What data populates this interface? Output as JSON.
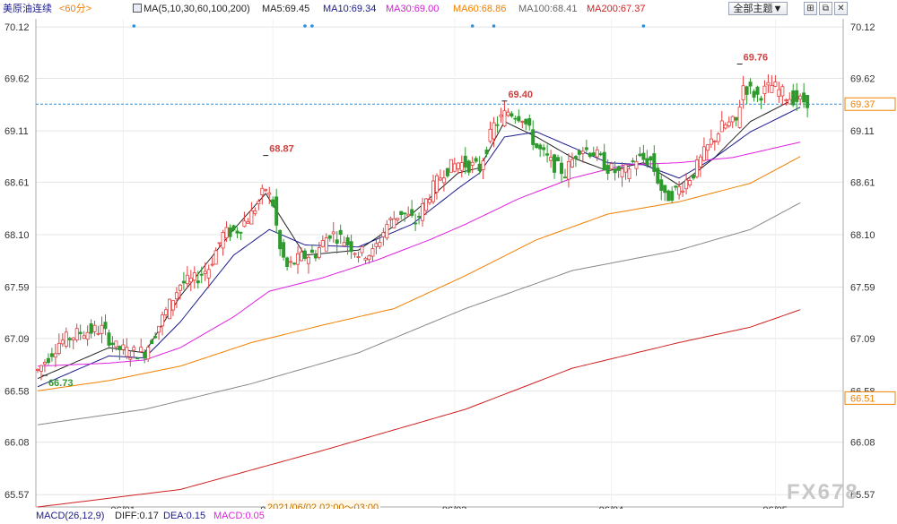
{
  "header": {
    "symbol": "美原油连续",
    "period": "<60分>",
    "ma_label": "MA(5,10,30,60,100,200)",
    "ma5": "MA5:69.45",
    "ma10": "MA10:69.34",
    "ma30": "MA30:69.00",
    "ma60": "MA60:68.86",
    "ma100": "MA100:68.41",
    "ma200": "MA200:67.37",
    "theme_button": "全部主题▼",
    "tool_icons": [
      "chart-window-icon",
      "restore-icon",
      "close-icon"
    ]
  },
  "footer": {
    "macd": "MACD(26,12,9)",
    "diff": "DIFF:0.17",
    "dea": "DEA:0.15",
    "macd_val": "MACD:0.05",
    "date_time": "2021/06/02 02:00～03:00"
  },
  "watermark": "FX678",
  "colors": {
    "up": "#e04040",
    "down": "#2e9a2e",
    "ma5": "#222222",
    "ma10": "#1a1a8c",
    "ma30": "#e020e0",
    "ma60": "#f08000",
    "ma100": "#888888",
    "ma200": "#d02020",
    "ref": "#2a8fd8",
    "symbol": "#1a1a8c"
  },
  "chart_data": {
    "type": "candlestick",
    "title": "美原油连续 <60分>",
    "y_ticks": [
      "70.12",
      "69.62",
      "69.11",
      "68.61",
      "68.10",
      "67.59",
      "67.09",
      "66.58",
      "66.08",
      "65.57"
    ],
    "ylim": [
      65.45,
      70.2
    ],
    "x_labels": [
      {
        "label": "06/01",
        "index": 24
      },
      {
        "label": "06/0",
        "index": 66
      },
      {
        "label": "06/03",
        "index": 117
      },
      {
        "label": "06/04",
        "index": 161
      },
      {
        "label": "06/05",
        "index": 207
      }
    ],
    "x_count": 222,
    "reference_line": 69.37,
    "right_labels": [
      {
        "value": 69.37,
        "label": "69.37"
      },
      {
        "value": 66.51,
        "label": "66.51"
      }
    ],
    "annotations": [
      {
        "label": "69.76",
        "index": 197,
        "value": 69.76,
        "kind": "high"
      },
      {
        "label": "69.40",
        "index": 131,
        "value": 69.4,
        "kind": "high"
      },
      {
        "label": "68.87",
        "index": 64,
        "value": 68.87,
        "kind": "high"
      },
      {
        "label": "66.73",
        "index": 2,
        "value": 66.73,
        "kind": "low"
      }
    ],
    "event_markers": [
      27,
      75,
      77,
      122,
      128,
      170
    ],
    "candle_anchors": [
      [
        0,
        66.78
      ],
      [
        6,
        67.05
      ],
      [
        12,
        67.15
      ],
      [
        18,
        67.18
      ],
      [
        22,
        67.0
      ],
      [
        26,
        66.95
      ],
      [
        30,
        66.96
      ],
      [
        36,
        67.35
      ],
      [
        40,
        67.62
      ],
      [
        44,
        67.66
      ],
      [
        48,
        67.78
      ],
      [
        52,
        68.1
      ],
      [
        56,
        68.15
      ],
      [
        60,
        68.3
      ],
      [
        64,
        68.55
      ],
      [
        66,
        68.4
      ],
      [
        68,
        67.95
      ],
      [
        70,
        67.78
      ],
      [
        74,
        67.88
      ],
      [
        78,
        67.92
      ],
      [
        82,
        68.12
      ],
      [
        86,
        68.05
      ],
      [
        90,
        67.92
      ],
      [
        94,
        67.92
      ],
      [
        98,
        68.2
      ],
      [
        102,
        68.32
      ],
      [
        106,
        68.22
      ],
      [
        110,
        68.5
      ],
      [
        114,
        68.72
      ],
      [
        118,
        68.8
      ],
      [
        124,
        68.75
      ],
      [
        128,
        69.16
      ],
      [
        132,
        69.3
      ],
      [
        136,
        69.25
      ],
      [
        140,
        68.95
      ],
      [
        144,
        68.8
      ],
      [
        148,
        68.7
      ],
      [
        152,
        68.95
      ],
      [
        156,
        68.9
      ],
      [
        160,
        68.75
      ],
      [
        164,
        68.68
      ],
      [
        168,
        68.84
      ],
      [
        172,
        68.82
      ],
      [
        176,
        68.45
      ],
      [
        180,
        68.55
      ],
      [
        184,
        68.7
      ],
      [
        188,
        68.95
      ],
      [
        192,
        69.15
      ],
      [
        196,
        69.2
      ],
      [
        198,
        69.55
      ],
      [
        202,
        69.45
      ],
      [
        206,
        69.55
      ],
      [
        210,
        69.45
      ],
      [
        214,
        69.4
      ],
      [
        221,
        69.4
      ]
    ],
    "ma_anchors": {
      "MA5": [
        [
          0,
          66.7
        ],
        [
          20,
          67.0
        ],
        [
          30,
          66.95
        ],
        [
          40,
          67.5
        ],
        [
          55,
          68.15
        ],
        [
          64,
          68.5
        ],
        [
          75,
          67.9
        ],
        [
          90,
          67.95
        ],
        [
          105,
          68.3
        ],
        [
          118,
          68.7
        ],
        [
          124,
          68.75
        ],
        [
          131,
          69.2
        ],
        [
          140,
          69.05
        ],
        [
          150,
          68.85
        ],
        [
          160,
          68.72
        ],
        [
          170,
          68.8
        ],
        [
          180,
          68.58
        ],
        [
          190,
          68.85
        ],
        [
          200,
          69.2
        ],
        [
          214,
          69.45
        ]
      ],
      "MA10": [
        [
          0,
          66.62
        ],
        [
          20,
          66.92
        ],
        [
          30,
          66.9
        ],
        [
          40,
          67.25
        ],
        [
          55,
          67.9
        ],
        [
          65,
          68.15
        ],
        [
          75,
          68.0
        ],
        [
          90,
          67.98
        ],
        [
          105,
          68.2
        ],
        [
          118,
          68.55
        ],
        [
          124,
          68.7
        ],
        [
          131,
          69.05
        ],
        [
          140,
          69.1
        ],
        [
          150,
          68.95
        ],
        [
          160,
          68.8
        ],
        [
          170,
          68.78
        ],
        [
          180,
          68.65
        ],
        [
          190,
          68.85
        ],
        [
          200,
          69.1
        ],
        [
          214,
          69.34
        ]
      ],
      "MA30": [
        [
          0,
          66.82
        ],
        [
          20,
          66.85
        ],
        [
          30,
          66.88
        ],
        [
          40,
          67.0
        ],
        [
          55,
          67.3
        ],
        [
          65,
          67.55
        ],
        [
          80,
          67.68
        ],
        [
          95,
          67.85
        ],
        [
          110,
          68.05
        ],
        [
          120,
          68.2
        ],
        [
          135,
          68.45
        ],
        [
          150,
          68.65
        ],
        [
          165,
          68.78
        ],
        [
          180,
          68.8
        ],
        [
          195,
          68.85
        ],
        [
          214,
          69.0
        ]
      ],
      "MA60": [
        [
          0,
          66.58
        ],
        [
          20,
          66.68
        ],
        [
          40,
          66.82
        ],
        [
          60,
          67.05
        ],
        [
          80,
          67.22
        ],
        [
          100,
          67.38
        ],
        [
          120,
          67.7
        ],
        [
          140,
          68.05
        ],
        [
          160,
          68.3
        ],
        [
          180,
          68.42
        ],
        [
          200,
          68.6
        ],
        [
          214,
          68.86
        ]
      ],
      "MA100": [
        [
          0,
          66.25
        ],
        [
          30,
          66.4
        ],
        [
          60,
          66.65
        ],
        [
          90,
          66.95
        ],
        [
          120,
          67.38
        ],
        [
          150,
          67.75
        ],
        [
          180,
          67.95
        ],
        [
          200,
          68.15
        ],
        [
          214,
          68.41
        ]
      ],
      "MA200": [
        [
          0,
          65.45
        ],
        [
          40,
          65.62
        ],
        [
          80,
          66.0
        ],
        [
          120,
          66.4
        ],
        [
          150,
          66.8
        ],
        [
          180,
          67.05
        ],
        [
          200,
          67.2
        ],
        [
          214,
          67.37
        ]
      ]
    }
  }
}
